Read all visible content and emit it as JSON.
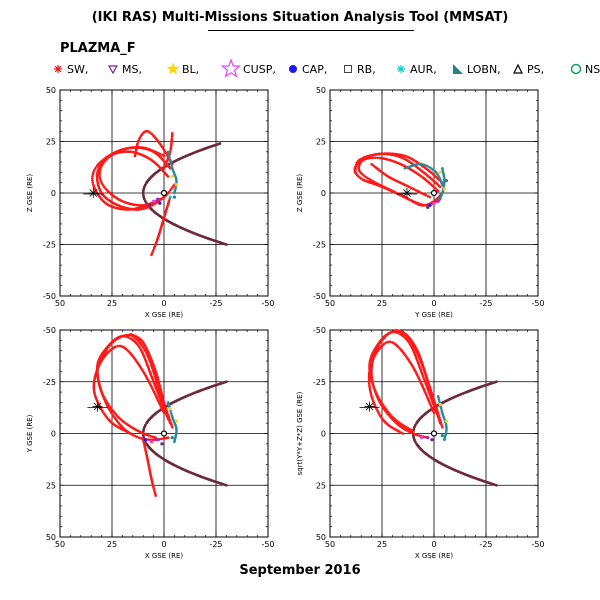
{
  "header": {
    "title": "(IKI RAS) Multi-Missions Situation Analysis Tool (MMSAT)",
    "spacecraft": "PLAZMA_F"
  },
  "legend": [
    {
      "label": "SW,",
      "symbol": "asterisk",
      "color": "#e41a1c"
    },
    {
      "label": "MS,",
      "symbol": "triangle-down",
      "color": "#7b1fa2"
    },
    {
      "label": "BL,",
      "symbol": "star",
      "color": "#ffd600"
    },
    {
      "label": "CUSP,",
      "symbol": "star-outline",
      "color": "#e040fb"
    },
    {
      "label": "CAP,",
      "symbol": "dot",
      "color": "#1a1aff"
    },
    {
      "label": "RB,",
      "symbol": "square",
      "color": "#444444"
    },
    {
      "label": "AUR,",
      "symbol": "asterisk",
      "color": "#00d0e0"
    },
    {
      "label": "LOBN,",
      "symbol": "triangle-fill",
      "color": "#2a7f8f"
    },
    {
      "label": "PS,",
      "symbol": "triangle-up",
      "color": "#000000"
    },
    {
      "label": "NS",
      "symbol": "circle",
      "color": "#00a060"
    }
  ],
  "footer": "September 2016",
  "colors": {
    "sw": "#ff1a1a",
    "magnetopause": "#6a2a3a",
    "lobe": "#2a8a96",
    "ms": "#6a2a7a"
  },
  "chart_data": [
    {
      "type": "scatter",
      "panel": "top-left",
      "xlabel": "X GSE (RE)",
      "ylabel": "Z GSE (RE)",
      "xlim": [
        50,
        -50
      ],
      "ylim": [
        -50,
        50
      ],
      "xticks": [
        "50",
        "25",
        "0",
        "-25",
        "-50"
      ],
      "yticks": [
        "-50",
        "-25",
        "0",
        "25",
        "50"
      ],
      "grid": true,
      "bow_shock_vertex": [
        13,
        0
      ],
      "orbits": [
        {
          "x": [
            -5,
            6,
            15,
            25,
            33,
            35,
            30,
            20,
            10,
            2,
            -3,
            -10
          ],
          "y": [
            0,
            -6,
            -8,
            -5,
            4,
            13,
            19,
            22,
            20,
            14,
            8,
            17
          ]
        },
        {
          "x": [
            -4,
            7,
            18,
            28,
            33,
            30,
            20,
            10,
            3,
            -2,
            -8
          ],
          "y": [
            -2,
            -8,
            -8,
            -2,
            7,
            16,
            20,
            18,
            12,
            6,
            16
          ]
        }
      ],
      "earth": [
        0,
        0
      ]
    },
    {
      "type": "scatter",
      "panel": "top-right",
      "xlabel": "Y GSE (RE)",
      "ylabel": "Z GSE (RE)",
      "xlim": [
        50,
        -50
      ],
      "ylim": [
        -50,
        50
      ],
      "xticks": [
        "50",
        "25",
        "0",
        "-25",
        "-50"
      ],
      "yticks": [
        "-50",
        "-25",
        "0",
        "25",
        "50"
      ],
      "grid": true,
      "earth": [
        0,
        0
      ]
    },
    {
      "type": "scatter",
      "panel": "bottom-left",
      "xlabel": "X GSE (RE)",
      "ylabel": "Y GSE (RE)",
      "xlim": [
        50,
        -50
      ],
      "ylim": [
        50,
        -50
      ],
      "xticks": [
        "50",
        "25",
        "0",
        "-25",
        "-50"
      ],
      "yticks": [
        "-50",
        "-25",
        "0",
        "25",
        "50"
      ],
      "grid": true,
      "earth": [
        0,
        0
      ]
    },
    {
      "type": "scatter",
      "panel": "bottom-right",
      "xlabel": "X GSE (RE)",
      "ylabel": "sqrt(Y*Y+Z*Z) GSE (RE)",
      "xlim": [
        50,
        -50
      ],
      "ylim": [
        50,
        -50
      ],
      "xticks": [
        "50",
        "25",
        "0",
        "-25",
        "-50"
      ],
      "yticks": [
        "-50",
        "-25",
        "0",
        "25",
        "50"
      ],
      "grid": true,
      "earth": [
        0,
        0
      ]
    }
  ]
}
